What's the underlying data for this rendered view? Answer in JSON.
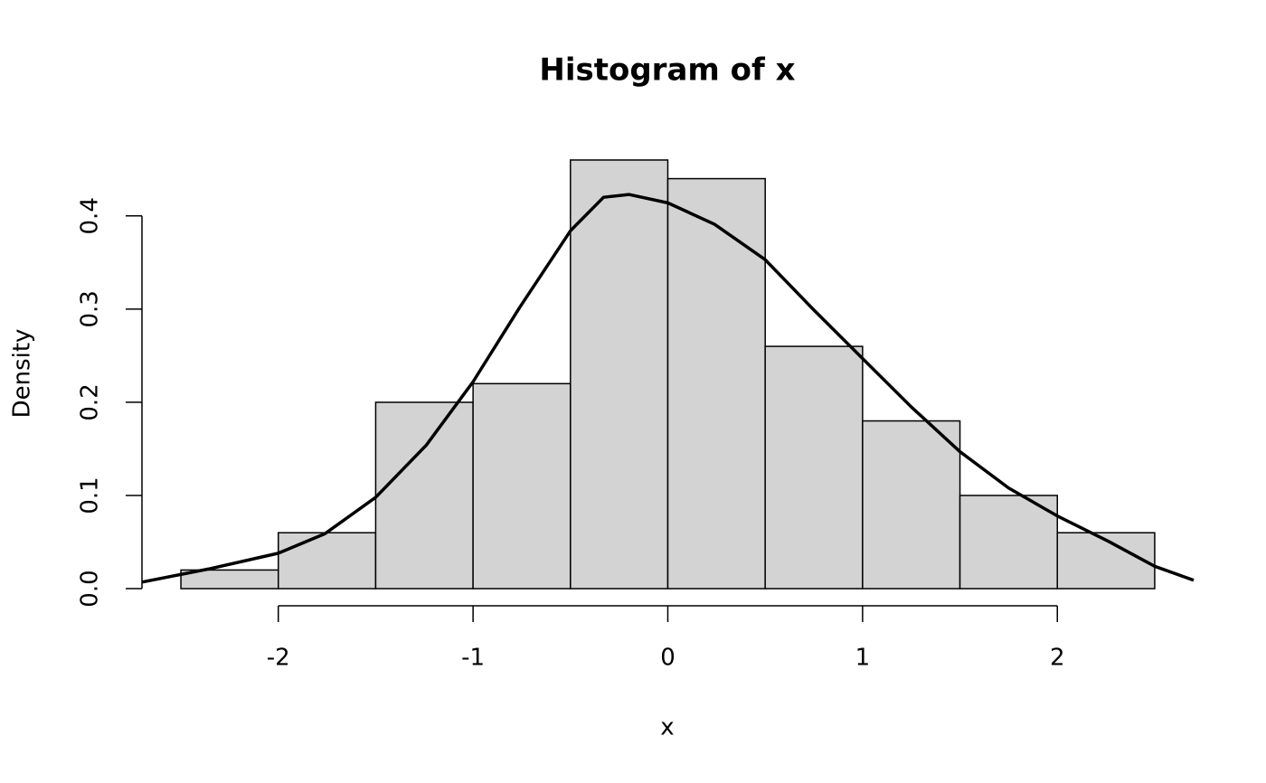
{
  "chart_data": {
    "type": "histogram",
    "title": "Histogram of x",
    "x_label": "x",
    "y_label": "Density",
    "bins": [
      -2.5,
      -2,
      -1.5,
      -1,
      -0.5,
      0,
      0.5,
      1,
      1.5,
      2,
      2.5
    ],
    "values": [
      0.02,
      0.06,
      0.2,
      0.22,
      0.46,
      0.44,
      0.26,
      0.18,
      0.1,
      0.06
    ],
    "color": "#d3d3d3",
    "edge_color": "#000000",
    "density": {
      "color": "#000000",
      "x": [
        -2.7,
        -2.36,
        -2.0,
        -1.76,
        -1.5,
        -1.24,
        -1.0,
        -0.76,
        -0.5,
        -0.33,
        -0.2,
        0,
        0.24,
        0.5,
        0.75,
        1.0,
        1.25,
        1.5,
        1.75,
        2.0,
        2.26,
        2.5,
        2.7
      ],
      "y": [
        0.007,
        0.021,
        0.038,
        0.059,
        0.098,
        0.154,
        0.222,
        0.302,
        0.384,
        0.42,
        0.423,
        0.414,
        0.391,
        0.353,
        0.299,
        0.247,
        0.195,
        0.147,
        0.108,
        0.078,
        0.051,
        0.024,
        0.009
      ]
    },
    "xlim": [
      -2.7,
      2.7
    ],
    "ylim": [
      -0.0184,
      0.4784
    ],
    "xticks": [
      -2,
      -1,
      0,
      1,
      2
    ],
    "yticks": [
      {
        "value": 0,
        "label": "0.0"
      },
      0.1,
      0.2,
      0.3,
      0.4
    ]
  }
}
